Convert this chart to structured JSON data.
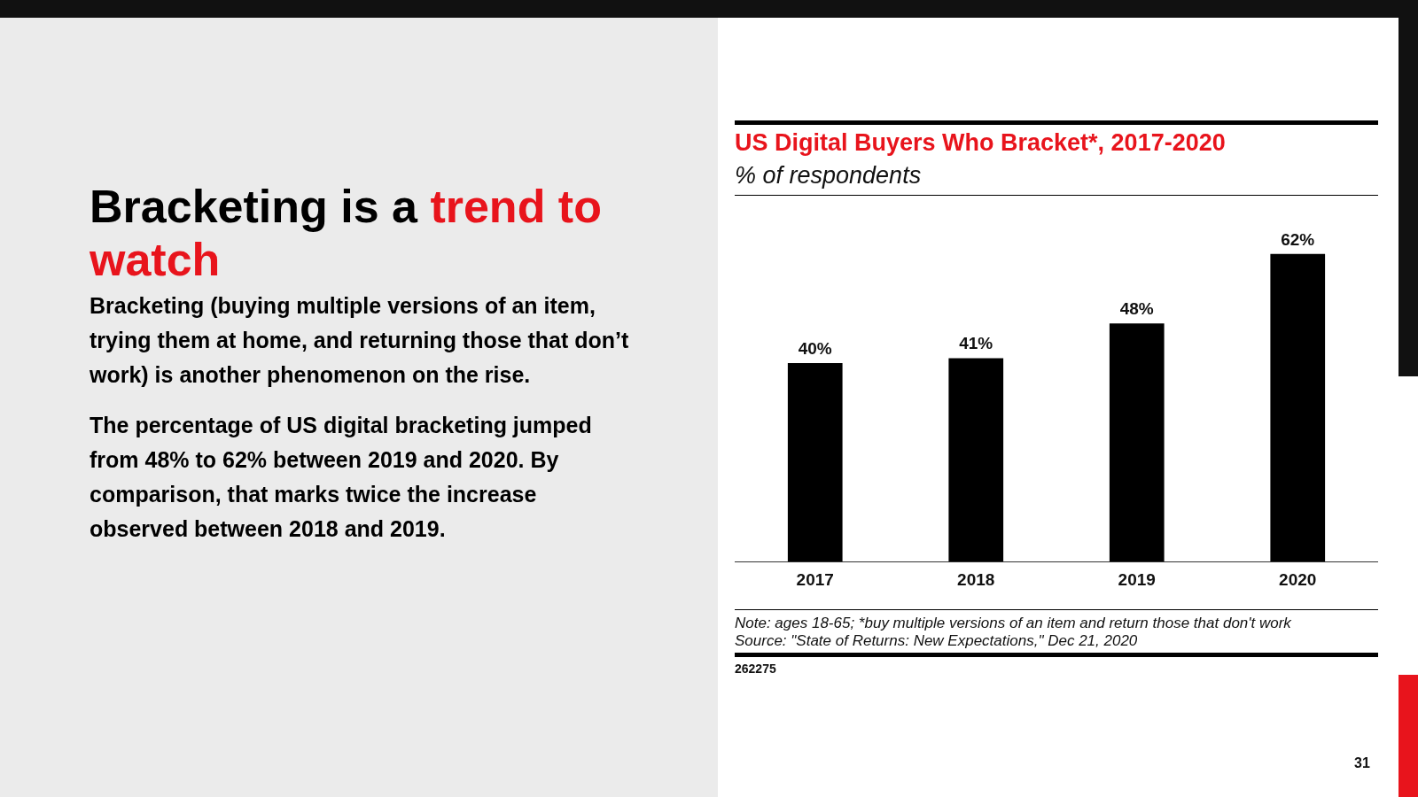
{
  "chart_data": {
    "type": "bar",
    "title": "US Digital Buyers Who Bracket*, 2017-2020",
    "subtitle": "% of respondents",
    "categories": [
      "2017",
      "2018",
      "2019",
      "2020"
    ],
    "values": [
      40,
      41,
      48,
      62
    ],
    "value_labels": [
      "40%",
      "41%",
      "48%",
      "62%"
    ],
    "color": "#000000",
    "grid": false,
    "legend": false,
    "annotations": [
      "Bracketing is a",
      "trend to watch",
      "Bracketing (buying multiple versions of an item, trying them at home, and returning those that don’t work) is another phenomenon on the rise.",
      "The percentage of US digital bracketing jumped from 48% to 62% between 2019 and 2020. By comparison, that marks twice the increase observed between 2018 and 2019.",
      "Note: ages 18-65; *buy multiple versions of an item and return those that don't work",
      "Source: \"State of Returns: New Expectations,\" Dec 21, 2020",
      "262275",
      "31"
    ]
  }
}
